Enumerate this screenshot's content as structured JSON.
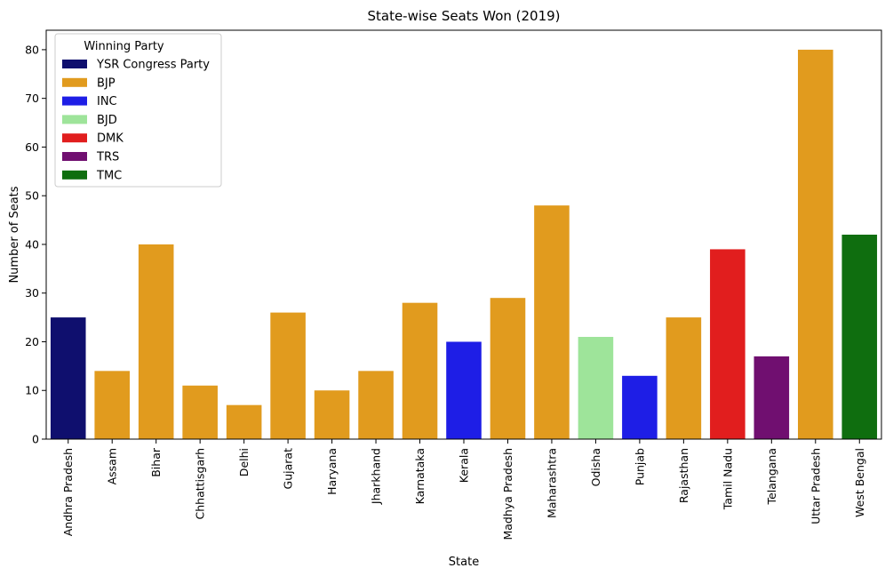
{
  "chart_data": {
    "type": "bar",
    "title": "State-wise Seats Won (2019)",
    "xlabel": "State",
    "ylabel": "Number of Seats",
    "ylim": [
      0,
      84
    ],
    "yticks": [
      0,
      10,
      20,
      30,
      40,
      50,
      60,
      70,
      80
    ],
    "grid": false,
    "legend_placement": "top-left",
    "categories": [
      "Andhra Pradesh",
      "Assam",
      "Bihar",
      "Chhattisgarh",
      "Delhi",
      "Gujarat",
      "Haryana",
      "Jharkhand",
      "Karnataka",
      "Kerala",
      "Madhya Pradesh",
      "Maharashtra",
      "Odisha",
      "Punjab",
      "Rajasthan",
      "Tamil Nadu",
      "Telangana",
      "Uttar Pradesh",
      "West Bengal"
    ],
    "values": [
      25,
      14,
      40,
      11,
      7,
      26,
      10,
      14,
      28,
      20,
      29,
      48,
      21,
      13,
      25,
      39,
      17,
      80,
      42
    ],
    "party": [
      "YSR Congress Party",
      "BJP",
      "BJP",
      "BJP",
      "BJP",
      "BJP",
      "BJP",
      "BJP",
      "BJP",
      "INC",
      "BJP",
      "BJP",
      "BJD",
      "INC",
      "BJP",
      "DMK",
      "TRS",
      "BJP",
      "TMC"
    ],
    "legend": {
      "title": "Winning Party",
      "entries": [
        {
          "name": "YSR Congress Party",
          "color": "#0f0f6e"
        },
        {
          "name": "BJP",
          "color": "#e19b1e"
        },
        {
          "name": "INC",
          "color": "#1e1ee6"
        },
        {
          "name": "BJD",
          "color": "#9ee49a"
        },
        {
          "name": "DMK",
          "color": "#e11e1e"
        },
        {
          "name": "TRS",
          "color": "#700f70"
        },
        {
          "name": "TMC",
          "color": "#0f6e0f"
        }
      ]
    }
  }
}
